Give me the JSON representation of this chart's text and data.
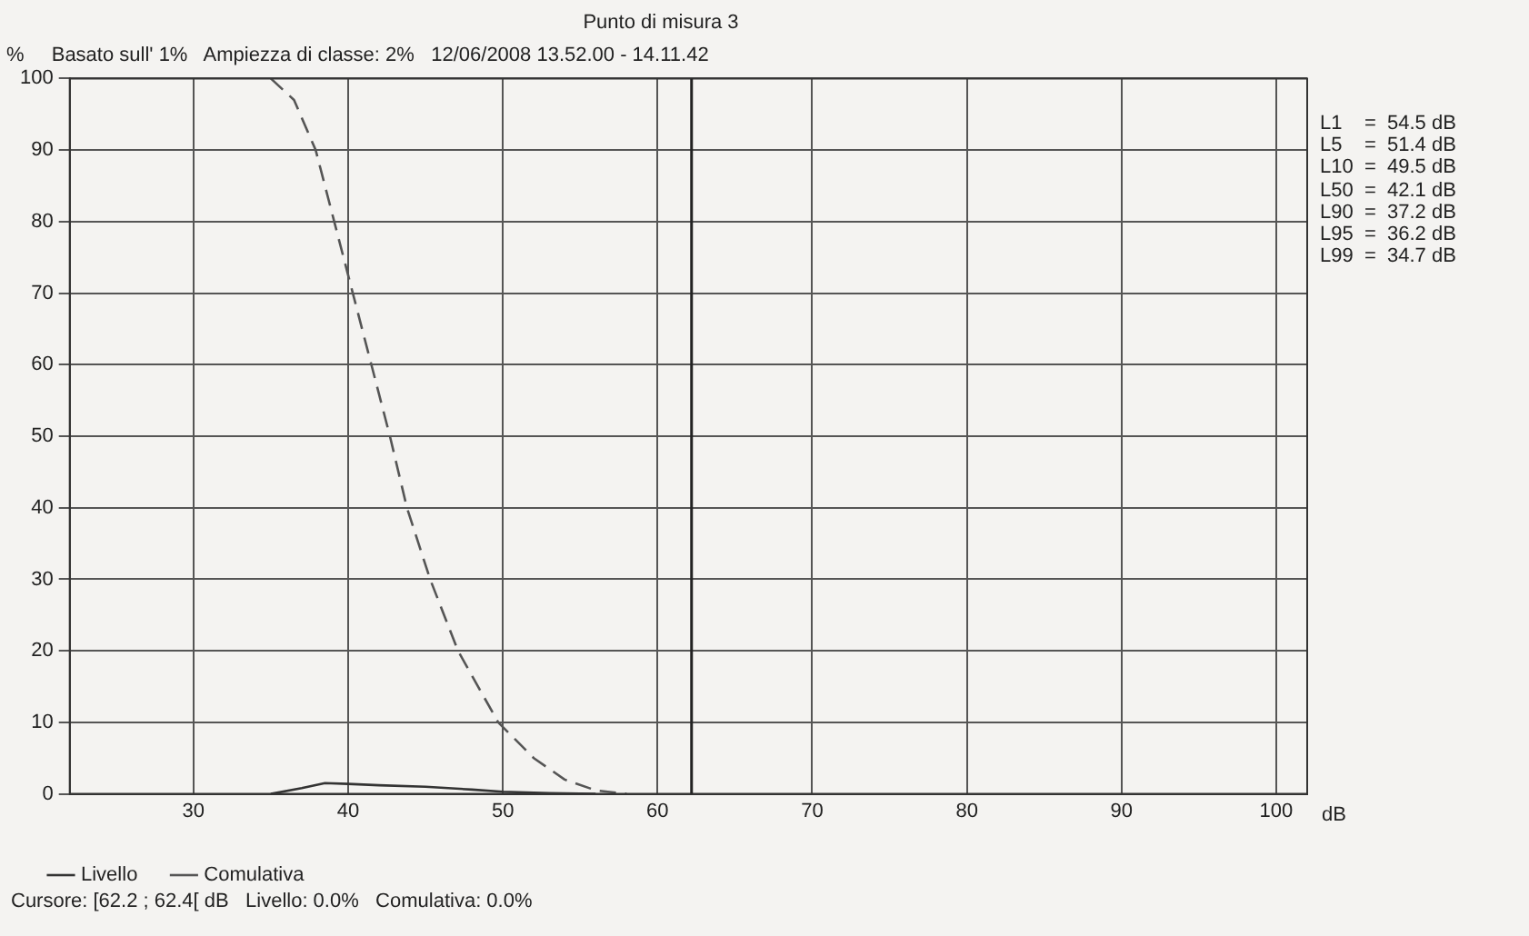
{
  "chart_data": {
    "type": "line",
    "title": "Punto di misura 3",
    "subtitle": "Basato sull' 1%   Ampiezza di classe: 2%   12/06/2008 13.52.00 - 14.11.42",
    "xlabel": "dB",
    "ylabel": "%",
    "xlim": [
      22,
      102
    ],
    "xticks": [
      30,
      40,
      50,
      60,
      70,
      80,
      90,
      100
    ],
    "ylim": [
      0,
      100
    ],
    "yticks": [
      0,
      10,
      20,
      30,
      40,
      50,
      60,
      70,
      80,
      90,
      100
    ],
    "grid": true,
    "legend": "bottom",
    "marker": "none",
    "series": [
      {
        "name": "Livello",
        "color": "#333333",
        "line_style": "solid",
        "x": [
          35,
          37,
          38.5,
          40,
          42,
          45,
          48,
          50,
          53,
          56
        ],
        "values": [
          0,
          0.8,
          1.5,
          1.4,
          1.2,
          1,
          0.6,
          0.3,
          0.1,
          0
        ]
      },
      {
        "name": "Comulativa",
        "color": "#555555",
        "line_style": "dashed",
        "x": [
          35,
          36.5,
          37.9,
          39.1,
          40.3,
          41.5,
          42.7,
          43.8,
          45.3,
          47.1,
          49.7,
          52,
          54,
          56,
          58
        ],
        "values": [
          100,
          97,
          90,
          80,
          70,
          60,
          50,
          40,
          30,
          20,
          10,
          5,
          2,
          0.5,
          0
        ]
      }
    ],
    "ref_lines": [
      {
        "axis": "x",
        "value": 62.2,
        "color": "#222222",
        "line_style": "solid"
      }
    ],
    "annotations": [
      "L1    =  54.5 dB",
      "L5    =  51.4 dB",
      "L10  =  49.5 dB",
      "L50  =  42.1 dB",
      "L90  =  37.2 dB",
      "L95  =  36.2 dB",
      "L99  =  34.7 dB",
      "Cursore: [62.2 ; 62.4[ dB   Livello: 0.0%   Comulativa: 0.0%"
    ]
  }
}
